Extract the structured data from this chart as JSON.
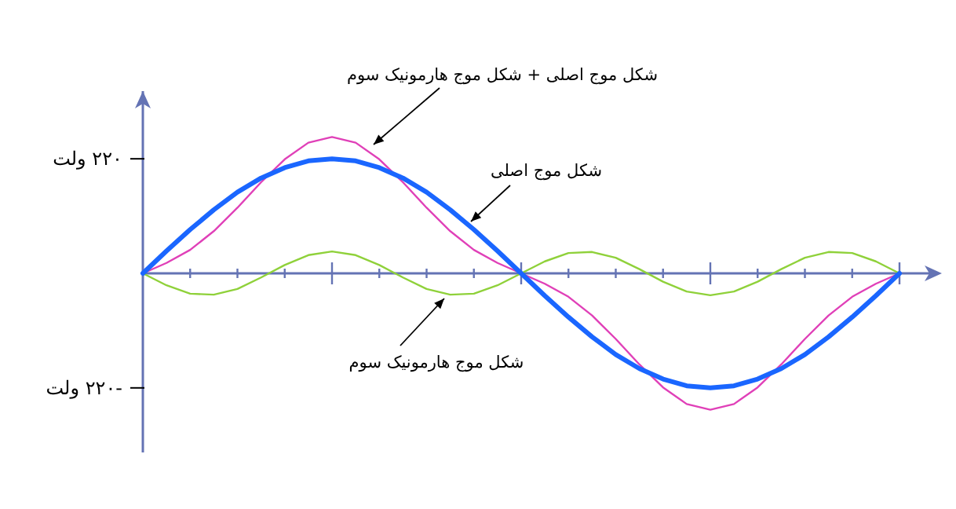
{
  "chart_data": {
    "type": "line",
    "categories": [
      null,
      null,
      null,
      null,
      null,
      null,
      null,
      null,
      null,
      null,
      null,
      null,
      null,
      null,
      null,
      null,
      null,
      null,
      null,
      null,
      null,
      null,
      null,
      null,
      null,
      null,
      null,
      null,
      null,
      null,
      null,
      null,
      null
    ],
    "series": [
      {
        "color": "#8fd13a",
        "values": [
          0,
          -23,
          -39,
          -41,
          -30,
          -8,
          16,
          35,
          42,
          35,
          16,
          -8,
          -30,
          -41,
          -39,
          -23,
          0,
          23,
          39,
          41,
          30,
          8,
          -16,
          -35,
          -42,
          -35,
          -16,
          8,
          30,
          41,
          39,
          23,
          0
        ]
      },
      {
        "color": "#e040b8",
        "values": [
          0,
          20,
          45,
          81,
          126,
          175,
          219,
          251,
          262,
          251,
          219,
          175,
          126,
          81,
          45,
          20,
          0,
          -20,
          -45,
          -81,
          -126,
          -175,
          -219,
          -251,
          -262,
          -251,
          -219,
          -175,
          -126,
          -81,
          -45,
          -20,
          0
        ]
      },
      {
        "color": "#1a66ff",
        "values": [
          0,
          43,
          84,
          122,
          156,
          183,
          203,
          216,
          220,
          216,
          203,
          183,
          156,
          122,
          84,
          43,
          0,
          -43,
          -84,
          -122,
          -156,
          -183,
          -203,
          -216,
          -220,
          -216,
          -203,
          -183,
          -156,
          -122,
          -84,
          -43,
          0
        ]
      }
    ],
    "ylim": [
      -344,
      350
    ],
    "yticks": [
      {
        "value": 220,
        "label": "۲۲۰ ولت"
      },
      {
        "value": -220,
        "label": "-۲۲۰ ولت"
      }
    ],
    "ref_lines": [
      {
        "axis": "y",
        "value": 0,
        "color": "#6473b4"
      }
    ],
    "tick_labels": "y",
    "grid": false,
    "marker": "none",
    "line_style": "solid",
    "annotations": [
      "شکل موج اصلی + شکل موج هارمونیک سوم",
      "شکل موج اصلی",
      "شکل موج هارمونیک سوم"
    ]
  }
}
